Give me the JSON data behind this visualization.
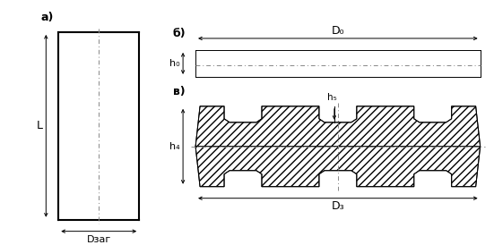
{
  "fig_width": 5.51,
  "fig_height": 2.74,
  "dpi": 100,
  "bg_color": "#ffffff",
  "line_color": "#000000",
  "dash_color": "#888888",
  "label_a": "а)",
  "label_b": "б)",
  "label_v": "в)",
  "label_L": "L",
  "label_Dzag": "Dзаг",
  "label_D0": "D₀",
  "label_h0": "h₀",
  "label_h4": "h₄",
  "label_h5": "h₅",
  "label_D3": "D₃",
  "lw_thick": 1.5,
  "lw_thin": 0.7
}
